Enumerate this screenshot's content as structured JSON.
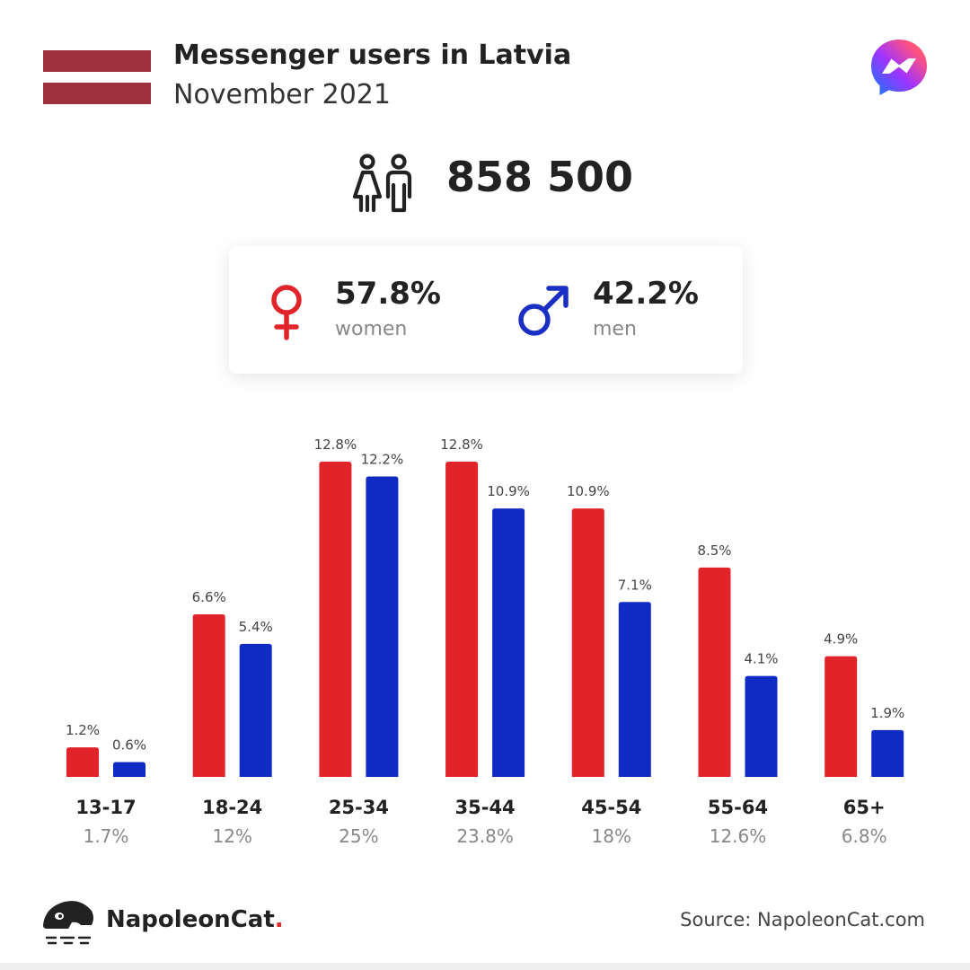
{
  "header": {
    "title": "Messenger users in Latvia",
    "subtitle": "November 2021",
    "flag_colors": [
      "#9e2f3b",
      "#ffffff",
      "#9e2f3b"
    ],
    "logo_icon": "messenger-logo-icon"
  },
  "total": {
    "icon": "people-icon",
    "value": "858 500"
  },
  "gender": {
    "women": {
      "pct": "57.8%",
      "label": "women",
      "icon": "female-symbol-icon",
      "color": "#e0242a"
    },
    "men": {
      "pct": "42.2%",
      "label": "men",
      "icon": "male-symbol-icon",
      "color": "#1a2fc4"
    }
  },
  "chart_data": {
    "type": "bar",
    "categories": [
      "13-17",
      "18-24",
      "25-34",
      "35-44",
      "45-54",
      "55-64",
      "65+"
    ],
    "category_totals": [
      "1.7%",
      "12%",
      "25%",
      "23.8%",
      "18%",
      "12.6%",
      "6.8%"
    ],
    "series": [
      {
        "color": "#e0242a",
        "values": [
          1.2,
          6.6,
          12.8,
          12.8,
          10.9,
          8.5,
          4.9
        ],
        "labels": [
          "1.2%",
          "6.6%",
          "12.8%",
          "12.8%",
          "10.9%",
          "8.5%",
          "4.9%"
        ]
      },
      {
        "color": "#102bc4",
        "values": [
          0.6,
          5.4,
          12.2,
          10.9,
          7.1,
          4.1,
          1.9
        ],
        "labels": [
          "0.6%",
          "5.4%",
          "12.2%",
          "10.9%",
          "7.1%",
          "4.1%",
          "1.9%"
        ]
      }
    ],
    "ylim": [
      0,
      12.8
    ],
    "grid": false
  },
  "footer": {
    "brand": "NapoleonCat",
    "brand_dot": ".",
    "brand_icon": "napoleoncat-logo-icon",
    "source": "Source: NapoleonCat.com"
  }
}
